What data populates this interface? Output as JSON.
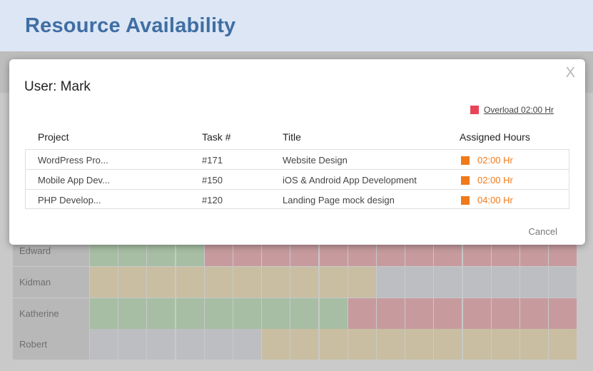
{
  "page": {
    "title": "Resource Availability"
  },
  "modal": {
    "title": "User: Mark",
    "close_label": "X",
    "legend": {
      "label": "Overload 02:00 Hr",
      "color": "#e84458"
    },
    "columns": [
      "Project",
      "Task #",
      "Title",
      "Assigned Hours"
    ],
    "rows": [
      {
        "project": "WordPress Pro...",
        "task": "#171",
        "title": "Website Design",
        "hours": "02:00 Hr"
      },
      {
        "project": "Mobile App Dev...",
        "task": "#150",
        "title": "iOS & Android App Development",
        "hours": "02:00 Hr"
      },
      {
        "project": "PHP Develop...",
        "task": "#120",
        "title": "Landing Page mock design",
        "hours": "04:00 Hr"
      }
    ],
    "hours_color": "#f07a1a",
    "cancel_label": "Cancel"
  },
  "availability": {
    "colors": {
      "green": "#a7bea4",
      "red": "#c79b9e",
      "tan": "#c9bea2",
      "gray": "#bcbec2"
    },
    "rows": [
      {
        "name": "Edward",
        "cells": [
          "green",
          "green",
          "green",
          "green",
          "red",
          "red",
          "red",
          "red",
          "red",
          "red",
          "red",
          "red",
          "red",
          "red",
          "red",
          "red",
          "red"
        ]
      },
      {
        "name": "Kidman",
        "cells": [
          "tan",
          "tan",
          "tan",
          "tan",
          "tan",
          "tan",
          "tan",
          "tan",
          "tan",
          "tan",
          "gray",
          "gray",
          "gray",
          "gray",
          "gray",
          "gray",
          "gray"
        ]
      },
      {
        "name": "Katherine",
        "cells": [
          "green",
          "green",
          "green",
          "green",
          "green",
          "green",
          "green",
          "green",
          "green",
          "red",
          "red",
          "red",
          "red",
          "red",
          "red",
          "red",
          "red"
        ]
      },
      {
        "name": "Robert",
        "cells": [
          "gray",
          "gray",
          "gray",
          "gray",
          "gray",
          "gray",
          "tan",
          "tan",
          "tan",
          "tan",
          "tan",
          "tan",
          "tan",
          "tan",
          "tan",
          "tan",
          "tan"
        ]
      }
    ]
  }
}
